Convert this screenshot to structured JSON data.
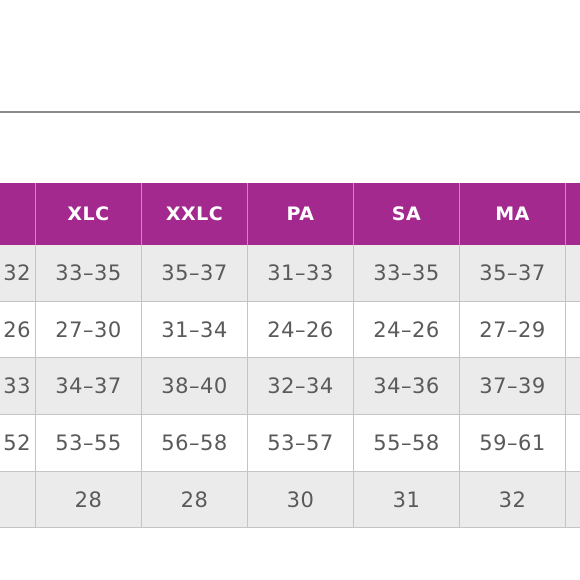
{
  "table": {
    "headers": [
      "XLC",
      "XXLC",
      "PA",
      "SA",
      "MA"
    ],
    "rows": [
      {
        "partial": "32",
        "cells": [
          "33–35",
          "35–37",
          "31–33",
          "33–35",
          "35–37"
        ]
      },
      {
        "partial": "26",
        "cells": [
          "27–30",
          "31–34",
          "24–26",
          "24–26",
          "27–29"
        ]
      },
      {
        "partial": "33",
        "cells": [
          "34–37",
          "38–40",
          "32–34",
          "34–36",
          "37–39"
        ]
      },
      {
        "partial": "52",
        "cells": [
          "53–55",
          "56–58",
          "53–57",
          "55–58",
          "59–61"
        ]
      },
      {
        "cells": [
          "28",
          "28",
          "30",
          "31",
          "32"
        ]
      }
    ]
  }
}
